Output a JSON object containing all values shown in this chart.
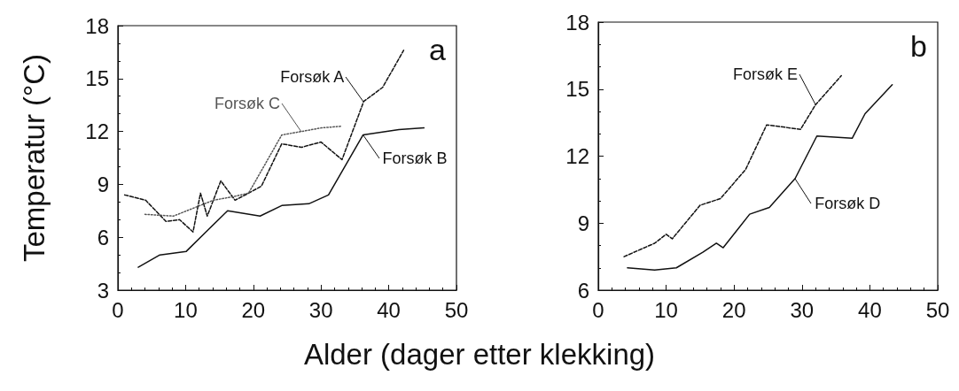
{
  "chart_data": [
    {
      "type": "line",
      "ylabel": "Temperatur (°C)",
      "xlabel": "Alder (dager etter klekking)",
      "xlim": [
        0,
        50
      ],
      "xticks": [
        0,
        10,
        20,
        30,
        40,
        50
      ],
      "ylim": [
        3,
        18
      ],
      "yticks": [
        3,
        6,
        9,
        12,
        15,
        18
      ],
      "grid": false,
      "legend": false,
      "marker": "none",
      "annotations": [
        "a"
      ],
      "series": [
        {
          "name": "Forsøk A",
          "color": "#111111",
          "line_style": "dashed",
          "x": [
            1.0,
            4.1,
            7.1,
            9.1,
            11.1,
            12.2,
            13.2,
            15.2,
            17.3,
            19.3,
            21.2,
            24.2,
            27.1,
            30.0,
            33.1,
            36.3,
            39.1,
            42.2
          ],
          "values": [
            8.4,
            8.1,
            6.9,
            7.0,
            6.3,
            8.5,
            7.2,
            9.2,
            8.1,
            8.5,
            8.9,
            11.3,
            11.1,
            11.4,
            10.4,
            13.7,
            14.5,
            16.6
          ]
        },
        {
          "name": "Forsøk C",
          "color": "#555555",
          "line_style": "dotted",
          "x": [
            4.0,
            8.2,
            14.1,
            17.0,
            19.3,
            24.2,
            27.1,
            30.0,
            33.1
          ],
          "values": [
            7.3,
            7.2,
            8.1,
            8.3,
            8.5,
            11.8,
            12.0,
            12.2,
            12.3
          ]
        },
        {
          "name": "Forsøk B",
          "color": "#111111",
          "line_style": "solid",
          "x": [
            3.0,
            6.2,
            10.1,
            13.0,
            16.2,
            21.0,
            24.2,
            28.2,
            31.1,
            36.2,
            41.5,
            45.2
          ],
          "values": [
            4.3,
            5.0,
            5.2,
            6.3,
            7.5,
            7.2,
            7.8,
            7.9,
            8.4,
            11.8,
            12.1,
            12.2
          ]
        }
      ]
    },
    {
      "type": "line",
      "xlim": [
        0,
        50
      ],
      "xticks": [
        0,
        10,
        20,
        30,
        40,
        50
      ],
      "ylim": [
        6,
        18
      ],
      "yticks": [
        6,
        9,
        12,
        15,
        18
      ],
      "grid": false,
      "legend": false,
      "marker": "none",
      "annotations": [
        "b"
      ],
      "series": [
        {
          "name": "Forsøk E",
          "color": "#111111",
          "line_style": "dashed",
          "x": [
            3.8,
            8.3,
            10.0,
            10.9,
            15.0,
            18.0,
            21.7,
            24.8,
            29.8,
            32.0,
            35.8
          ],
          "values": [
            7.5,
            8.1,
            8.5,
            8.3,
            9.8,
            10.1,
            11.4,
            13.4,
            13.2,
            14.3,
            15.6
          ]
        },
        {
          "name": "Forsøk D",
          "color": "#111111",
          "line_style": "solid",
          "x": [
            4.3,
            8.3,
            11.5,
            15.4,
            17.4,
            18.4,
            22.3,
            25.2,
            29.0,
            32.2,
            37.4,
            39.3,
            43.3
          ],
          "values": [
            7.0,
            6.9,
            7.0,
            7.7,
            8.1,
            7.9,
            9.4,
            9.7,
            11.0,
            12.9,
            12.8,
            13.9,
            15.2
          ]
        }
      ]
    }
  ]
}
